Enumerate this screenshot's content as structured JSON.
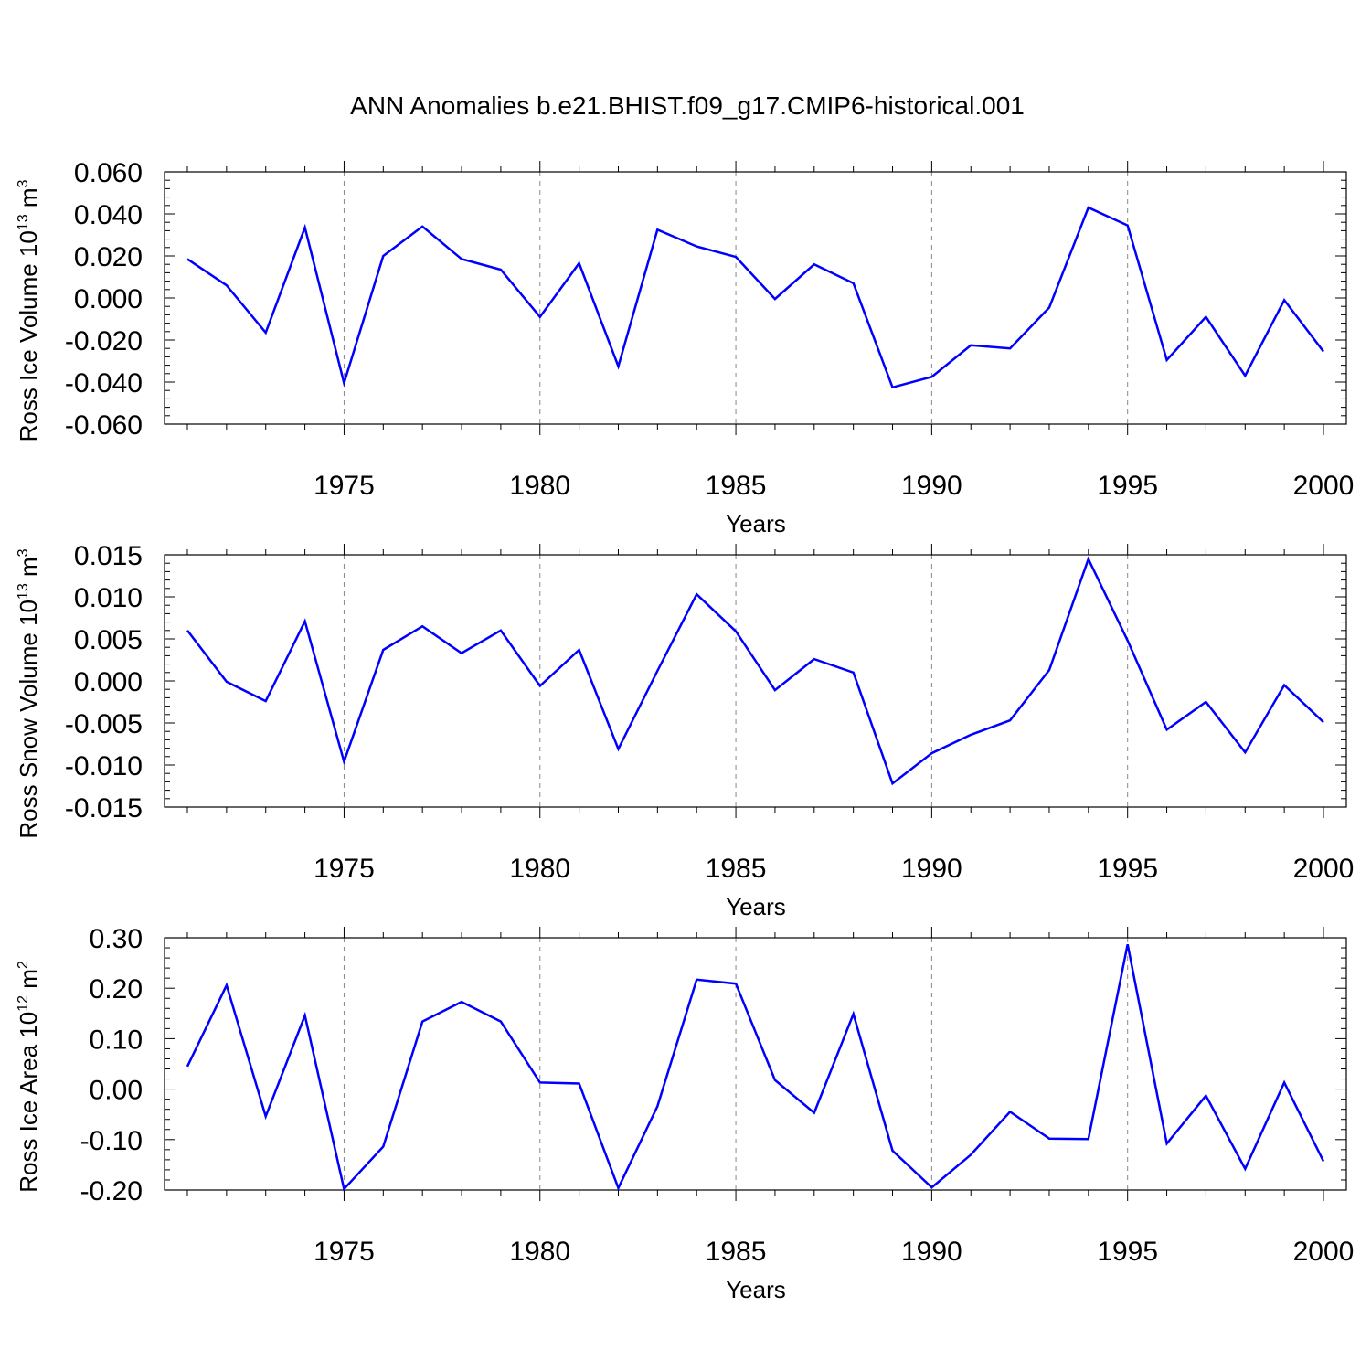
{
  "title": "ANN Anomalies b.e21.BHIST.f09_g17.CMIP6-historical.001",
  "colors": {
    "line": "#0000ff",
    "axis": "#000000",
    "grid": "#888888"
  },
  "chart_data": [
    {
      "type": "line",
      "ylabel_main": "Ross Ice Volume 10",
      "ylabel_exp": "13",
      "ylabel_unit": " m",
      "ylabel_unit_exp": "3",
      "xlabel": "Years",
      "xlim": [
        1971,
        2000
      ],
      "ylim": [
        -0.06,
        0.06
      ],
      "xticks": [
        1975,
        1980,
        1985,
        1990,
        1995,
        2000
      ],
      "xtick_labels": [
        "1975",
        "1980",
        "1985",
        "1990",
        "1995",
        "2000"
      ],
      "yticks": [
        -0.06,
        -0.04,
        -0.02,
        0.0,
        0.02,
        0.04,
        0.06
      ],
      "ytick_labels": [
        "-0.060",
        "-0.040",
        "-0.020",
        "0.000",
        "0.020",
        "0.040",
        "0.060"
      ],
      "grid_x": [
        1975,
        1980,
        1985,
        1990,
        1995
      ],
      "series": [
        {
          "name": "Ross Ice Volume",
          "x": [
            1971,
            1972,
            1973,
            1974,
            1975,
            1976,
            1977,
            1978,
            1979,
            1980,
            1981,
            1982,
            1983,
            1984,
            1985,
            1986,
            1987,
            1988,
            1989,
            1990,
            1991,
            1992,
            1993,
            1994,
            1995,
            1996,
            1997,
            1998,
            1999,
            2000
          ],
          "values": [
            0.0185,
            0.006,
            -0.0165,
            0.0335,
            -0.0405,
            0.02,
            0.034,
            0.0185,
            0.0135,
            -0.009,
            0.0165,
            -0.0325,
            0.0325,
            0.0245,
            0.0195,
            -0.0005,
            0.016,
            0.007,
            -0.0425,
            -0.0375,
            -0.0225,
            -0.024,
            -0.0045,
            0.043,
            0.0345,
            -0.0295,
            -0.009,
            -0.037,
            -0.001,
            -0.0255
          ]
        }
      ]
    },
    {
      "type": "line",
      "ylabel_main": "Ross Snow Volume 10",
      "ylabel_exp": "13",
      "ylabel_unit": " m",
      "ylabel_unit_exp": "3",
      "xlabel": "Years",
      "xlim": [
        1971,
        2000
      ],
      "ylim": [
        -0.015,
        0.015
      ],
      "xticks": [
        1975,
        1980,
        1985,
        1990,
        1995,
        2000
      ],
      "xtick_labels": [
        "1975",
        "1980",
        "1985",
        "1990",
        "1995",
        "2000"
      ],
      "yticks": [
        -0.015,
        -0.01,
        -0.005,
        0.0,
        0.005,
        0.01,
        0.015
      ],
      "ytick_labels": [
        "-0.015",
        "-0.010",
        "-0.005",
        "0.000",
        "0.005",
        "0.010",
        "0.015"
      ],
      "grid_x": [
        1975,
        1980,
        1985,
        1990,
        1995
      ],
      "series": [
        {
          "name": "Ross Snow Volume",
          "x": [
            1971,
            1972,
            1973,
            1974,
            1975,
            1976,
            1977,
            1978,
            1979,
            1980,
            1981,
            1982,
            1983,
            1984,
            1985,
            1986,
            1987,
            1988,
            1989,
            1990,
            1991,
            1992,
            1993,
            1994,
            1995,
            1996,
            1997,
            1998,
            1999,
            2000
          ],
          "values": [
            0.006,
            -0.0001,
            -0.0024,
            0.0071,
            -0.0096,
            0.0037,
            0.0065,
            0.0033,
            0.006,
            -0.0006,
            0.0037,
            -0.0081,
            0.0012,
            0.0103,
            0.0059,
            -0.0011,
            0.0026,
            0.001,
            -0.0122,
            -0.0086,
            -0.0064,
            -0.0047,
            0.0013,
            0.0145,
            0.0048,
            -0.0058,
            -0.0025,
            -0.0085,
            -0.0005,
            -0.0049
          ]
        }
      ]
    },
    {
      "type": "line",
      "ylabel_main": "Ross Ice Area 10",
      "ylabel_exp": "12",
      "ylabel_unit": " m",
      "ylabel_unit_exp": "2",
      "xlabel": "Years",
      "xlim": [
        1971,
        2000
      ],
      "ylim": [
        -0.2,
        0.3
      ],
      "xticks": [
        1975,
        1980,
        1985,
        1990,
        1995,
        2000
      ],
      "xtick_labels": [
        "1975",
        "1980",
        "1985",
        "1990",
        "1995",
        "2000"
      ],
      "yticks": [
        -0.2,
        -0.1,
        0.0,
        0.1,
        0.2,
        0.3
      ],
      "ytick_labels": [
        "-0.20",
        "-0.10",
        "0.00",
        "0.10",
        "0.20",
        "0.30"
      ],
      "grid_x": [
        1975,
        1980,
        1985,
        1990,
        1995
      ],
      "series": [
        {
          "name": "Ross Ice Area",
          "x": [
            1971,
            1972,
            1973,
            1974,
            1975,
            1976,
            1977,
            1978,
            1979,
            1980,
            1981,
            1982,
            1983,
            1984,
            1985,
            1986,
            1987,
            1988,
            1989,
            1990,
            1991,
            1992,
            1993,
            1994,
            1995,
            1996,
            1997,
            1998,
            1999,
            2000
          ],
          "values": [
            0.045,
            0.206,
            -0.054,
            0.146,
            -0.198,
            -0.114,
            0.134,
            0.173,
            0.134,
            0.013,
            0.011,
            -0.196,
            -0.034,
            0.217,
            0.209,
            0.018,
            -0.047,
            0.149,
            -0.122,
            -0.195,
            -0.13,
            -0.045,
            -0.098,
            -0.099,
            0.287,
            -0.108,
            -0.013,
            -0.158,
            0.013,
            -0.143
          ]
        }
      ]
    }
  ]
}
